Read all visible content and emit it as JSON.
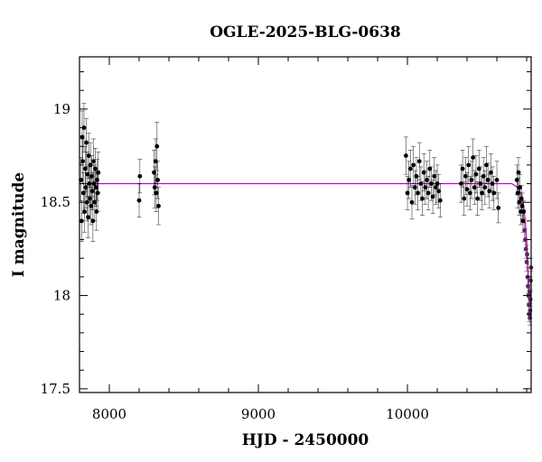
{
  "chart_data": {
    "type": "scatter",
    "title": "OGLE-2025-BLG-0638",
    "xlabel": "HJD - 2450000",
    "ylabel": "I magnitude",
    "xlim": [
      7800,
      10830
    ],
    "ylim": [
      19.28,
      17.48
    ],
    "y_inverted": true,
    "xticks": [
      8000,
      9000,
      10000
    ],
    "yticks": [
      17.5,
      18,
      18.5,
      19
    ],
    "grid": false,
    "legend": "none",
    "colors": {
      "data": "#000000",
      "model": "#cc00cc"
    },
    "model": {
      "baseline": 18.6,
      "x": [
        7800,
        10700,
        10740,
        10760,
        10780,
        10790,
        10800,
        10810,
        10818,
        10825,
        10830
      ],
      "y": [
        18.6,
        18.6,
        18.58,
        18.55,
        18.48,
        18.4,
        18.3,
        18.12,
        17.98,
        17.95,
        17.97
      ]
    },
    "series": [
      {
        "points": [
          {
            "x": 7810,
            "y": 18.62,
            "e": 0.12
          },
          {
            "x": 7814,
            "y": 18.4,
            "e": 0.11
          },
          {
            "x": 7818,
            "y": 18.85,
            "e": 0.14
          },
          {
            "x": 7822,
            "y": 18.72,
            "e": 0.12
          },
          {
            "x": 7826,
            "y": 18.55,
            "e": 0.11
          },
          {
            "x": 7830,
            "y": 18.9,
            "e": 0.13
          },
          {
            "x": 7834,
            "y": 18.45,
            "e": 0.11
          },
          {
            "x": 7838,
            "y": 18.68,
            "e": 0.12
          },
          {
            "x": 7842,
            "y": 18.58,
            "e": 0.11
          },
          {
            "x": 7846,
            "y": 18.82,
            "e": 0.13
          },
          {
            "x": 7850,
            "y": 18.5,
            "e": 0.1
          },
          {
            "x": 7854,
            "y": 18.65,
            "e": 0.12
          },
          {
            "x": 7858,
            "y": 18.42,
            "e": 0.11
          },
          {
            "x": 7862,
            "y": 18.75,
            "e": 0.12
          },
          {
            "x": 7866,
            "y": 18.6,
            "e": 0.1
          },
          {
            "x": 7870,
            "y": 18.52,
            "e": 0.11
          },
          {
            "x": 7874,
            "y": 18.7,
            "e": 0.12
          },
          {
            "x": 7878,
            "y": 18.48,
            "e": 0.1
          },
          {
            "x": 7882,
            "y": 18.64,
            "e": 0.11
          },
          {
            "x": 7886,
            "y": 18.56,
            "e": 0.1
          },
          {
            "x": 7890,
            "y": 18.4,
            "e": 0.11
          },
          {
            "x": 7894,
            "y": 18.72,
            "e": 0.12
          },
          {
            "x": 7898,
            "y": 18.6,
            "e": 0.1
          },
          {
            "x": 7902,
            "y": 18.5,
            "e": 0.1
          },
          {
            "x": 7906,
            "y": 18.68,
            "e": 0.11
          },
          {
            "x": 7910,
            "y": 18.58,
            "e": 0.1
          },
          {
            "x": 7914,
            "y": 18.45,
            "e": 0.1
          },
          {
            "x": 7918,
            "y": 18.62,
            "e": 0.11
          },
          {
            "x": 7922,
            "y": 18.55,
            "e": 0.1
          },
          {
            "x": 7926,
            "y": 18.66,
            "e": 0.11
          },
          {
            "x": 8200,
            "y": 18.51,
            "e": 0.09
          },
          {
            "x": 8205,
            "y": 18.64,
            "e": 0.09
          },
          {
            "x": 8300,
            "y": 18.66,
            "e": 0.12
          },
          {
            "x": 8305,
            "y": 18.58,
            "e": 0.11
          },
          {
            "x": 8310,
            "y": 18.72,
            "e": 0.12
          },
          {
            "x": 8315,
            "y": 18.55,
            "e": 0.1
          },
          {
            "x": 8320,
            "y": 18.8,
            "e": 0.13
          },
          {
            "x": 8325,
            "y": 18.62,
            "e": 0.1
          },
          {
            "x": 8330,
            "y": 18.48,
            "e": 0.1
          },
          {
            "x": 9990,
            "y": 18.75,
            "e": 0.1
          },
          {
            "x": 10000,
            "y": 18.55,
            "e": 0.09
          },
          {
            "x": 10010,
            "y": 18.62,
            "e": 0.1
          },
          {
            "x": 10020,
            "y": 18.68,
            "e": 0.1
          },
          {
            "x": 10030,
            "y": 18.5,
            "e": 0.09
          },
          {
            "x": 10040,
            "y": 18.7,
            "e": 0.1
          },
          {
            "x": 10050,
            "y": 18.58,
            "e": 0.09
          },
          {
            "x": 10060,
            "y": 18.64,
            "e": 0.1
          },
          {
            "x": 10070,
            "y": 18.55,
            "e": 0.09
          },
          {
            "x": 10080,
            "y": 18.72,
            "e": 0.1
          },
          {
            "x": 10090,
            "y": 18.6,
            "e": 0.09
          },
          {
            "x": 10100,
            "y": 18.52,
            "e": 0.09
          },
          {
            "x": 10110,
            "y": 18.66,
            "e": 0.1
          },
          {
            "x": 10120,
            "y": 18.58,
            "e": 0.09
          },
          {
            "x": 10130,
            "y": 18.62,
            "e": 0.1
          },
          {
            "x": 10140,
            "y": 18.55,
            "e": 0.09
          },
          {
            "x": 10150,
            "y": 18.68,
            "e": 0.1
          },
          {
            "x": 10160,
            "y": 18.6,
            "e": 0.09
          },
          {
            "x": 10170,
            "y": 18.53,
            "e": 0.09
          },
          {
            "x": 10180,
            "y": 18.64,
            "e": 0.1
          },
          {
            "x": 10190,
            "y": 18.58,
            "e": 0.09
          },
          {
            "x": 10200,
            "y": 18.6,
            "e": 0.1
          },
          {
            "x": 10210,
            "y": 18.56,
            "e": 0.09
          },
          {
            "x": 10220,
            "y": 18.51,
            "e": 0.09
          },
          {
            "x": 10360,
            "y": 18.6,
            "e": 0.1
          },
          {
            "x": 10370,
            "y": 18.68,
            "e": 0.1
          },
          {
            "x": 10380,
            "y": 18.52,
            "e": 0.09
          },
          {
            "x": 10390,
            "y": 18.64,
            "e": 0.1
          },
          {
            "x": 10400,
            "y": 18.57,
            "e": 0.09
          },
          {
            "x": 10410,
            "y": 18.7,
            "e": 0.1
          },
          {
            "x": 10420,
            "y": 18.55,
            "e": 0.09
          },
          {
            "x": 10430,
            "y": 18.62,
            "e": 0.1
          },
          {
            "x": 10440,
            "y": 18.74,
            "e": 0.1
          },
          {
            "x": 10450,
            "y": 18.58,
            "e": 0.09
          },
          {
            "x": 10460,
            "y": 18.65,
            "e": 0.1
          },
          {
            "x": 10470,
            "y": 18.52,
            "e": 0.09
          },
          {
            "x": 10480,
            "y": 18.68,
            "e": 0.1
          },
          {
            "x": 10490,
            "y": 18.6,
            "e": 0.09
          },
          {
            "x": 10500,
            "y": 18.55,
            "e": 0.09
          },
          {
            "x": 10510,
            "y": 18.64,
            "e": 0.1
          },
          {
            "x": 10520,
            "y": 18.58,
            "e": 0.09
          },
          {
            "x": 10530,
            "y": 18.7,
            "e": 0.1
          },
          {
            "x": 10540,
            "y": 18.62,
            "e": 0.09
          },
          {
            "x": 10550,
            "y": 18.56,
            "e": 0.09
          },
          {
            "x": 10560,
            "y": 18.66,
            "e": 0.1
          },
          {
            "x": 10570,
            "y": 18.6,
            "e": 0.09
          },
          {
            "x": 10580,
            "y": 18.55,
            "e": 0.09
          },
          {
            "x": 10600,
            "y": 18.62,
            "e": 0.1
          },
          {
            "x": 10610,
            "y": 18.47,
            "e": 0.08
          },
          {
            "x": 10735,
            "y": 18.62,
            "e": 0.08
          },
          {
            "x": 10740,
            "y": 18.55,
            "e": 0.08
          },
          {
            "x": 10745,
            "y": 18.66,
            "e": 0.08
          },
          {
            "x": 10750,
            "y": 18.5,
            "e": 0.07
          },
          {
            "x": 10755,
            "y": 18.58,
            "e": 0.07
          },
          {
            "x": 10760,
            "y": 18.45,
            "e": 0.07
          },
          {
            "x": 10765,
            "y": 18.52,
            "e": 0.07
          },
          {
            "x": 10770,
            "y": 18.48,
            "e": 0.07
          },
          {
            "x": 10775,
            "y": 18.4,
            "e": 0.06
          },
          {
            "x": 10780,
            "y": 18.45,
            "e": 0.06
          },
          {
            "x": 10785,
            "y": 18.35,
            "e": 0.06
          },
          {
            "x": 10790,
            "y": 18.3,
            "e": 0.06
          },
          {
            "x": 10795,
            "y": 18.25,
            "e": 0.05
          },
          {
            "x": 10800,
            "y": 18.18,
            "e": 0.05
          },
          {
            "x": 10803,
            "y": 18.22,
            "e": 0.05
          },
          {
            "x": 10806,
            "y": 18.1,
            "e": 0.05
          },
          {
            "x": 10809,
            "y": 18.05,
            "e": 0.04
          },
          {
            "x": 10812,
            "y": 18.0,
            "e": 0.04
          },
          {
            "x": 10815,
            "y": 17.95,
            "e": 0.04
          },
          {
            "x": 10817,
            "y": 17.9,
            "e": 0.04
          },
          {
            "x": 10819,
            "y": 18.02,
            "e": 0.04
          },
          {
            "x": 10821,
            "y": 17.88,
            "e": 0.04
          },
          {
            "x": 10823,
            "y": 17.92,
            "e": 0.04
          },
          {
            "x": 10825,
            "y": 17.98,
            "e": 0.04
          },
          {
            "x": 10827,
            "y": 18.08,
            "e": 0.05
          },
          {
            "x": 10829,
            "y": 18.15,
            "e": 0.05
          }
        ]
      }
    ]
  }
}
